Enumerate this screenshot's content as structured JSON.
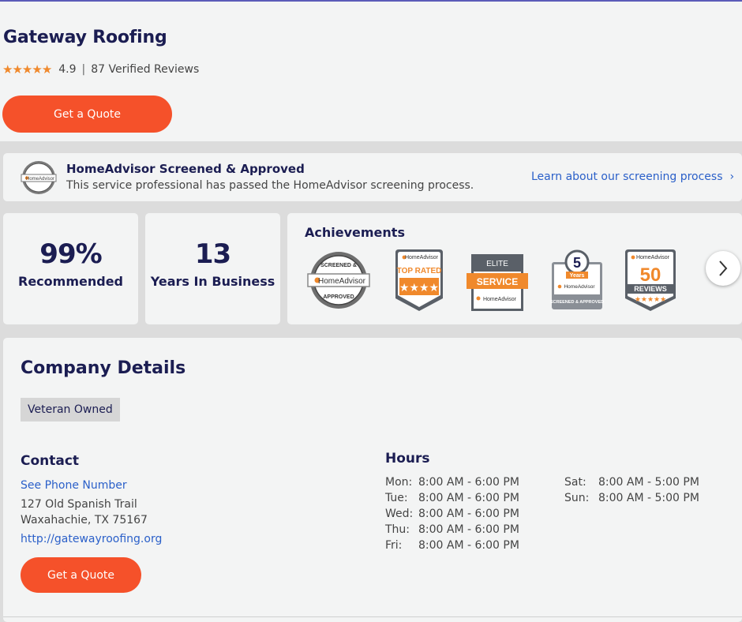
{
  "business": {
    "name": "Gateway Roofing",
    "rating": "4.9",
    "separator": "|",
    "review_count": "87 Verified Reviews",
    "quote_label": "Get a Quote"
  },
  "screening": {
    "badge_text_top": "SCREENED &",
    "badge_text_brand": "HomeAdvisor",
    "badge_text_bottom": "APPROVED",
    "title": "HomeAdvisor Screened & Approved",
    "subtitle": "This service professional has passed the HomeAdvisor screening process.",
    "link_label": "Learn about our screening process"
  },
  "stats": [
    {
      "value": "99%",
      "label": "Recommended"
    },
    {
      "value": "13",
      "label": "Years In Business"
    }
  ],
  "achievements": {
    "title": "Achievements",
    "badges": [
      {
        "name": "screened-approved",
        "brand": "HomeAdvisor",
        "top": "SCREENED &",
        "bottom": "APPROVED"
      },
      {
        "name": "top-rated",
        "brand": "HomeAdvisor",
        "text": "TOP RATED"
      },
      {
        "name": "elite-service",
        "brand": "HomeAdvisor",
        "top": "ELITE",
        "text": "SERVICE"
      },
      {
        "name": "five-years",
        "brand": "HomeAdvisor",
        "number": "5",
        "text": "Years",
        "bottom": "SCREENED & APPROVED"
      },
      {
        "name": "fifty-reviews",
        "brand": "HomeAdvisor",
        "number": "50",
        "text": "REVIEWS"
      }
    ]
  },
  "details": {
    "title": "Company Details",
    "tag": "Veteran Owned",
    "contact_title": "Contact",
    "phone_link": "See Phone Number",
    "address_line1": "127 Old Spanish Trail",
    "address_line2": "Waxahachie, TX 75167",
    "website": "http://gatewayroofing.org",
    "quote_label": "Get a Quote",
    "hours_title": "Hours",
    "hours_left": [
      {
        "day": "Mon:",
        "time": "8:00 AM - 6:00 PM"
      },
      {
        "day": "Tue:",
        "time": "8:00 AM - 6:00 PM"
      },
      {
        "day": "Wed:",
        "time": "8:00 AM - 6:00 PM"
      },
      {
        "day": "Thu:",
        "time": "8:00 AM - 6:00 PM"
      },
      {
        "day": "Fri:",
        "time": "8:00 AM - 6:00 PM"
      }
    ],
    "hours_right": [
      {
        "day": "Sat:",
        "time": "8:00 AM - 5:00 PM"
      },
      {
        "day": "Sun:",
        "time": "8:00 AM - 5:00 PM"
      }
    ]
  },
  "colors": {
    "brand_navy": "#1b1d52",
    "cta_orange": "#f5512a",
    "link_blue": "#2b60c9",
    "star_orange": "#f0892c"
  }
}
